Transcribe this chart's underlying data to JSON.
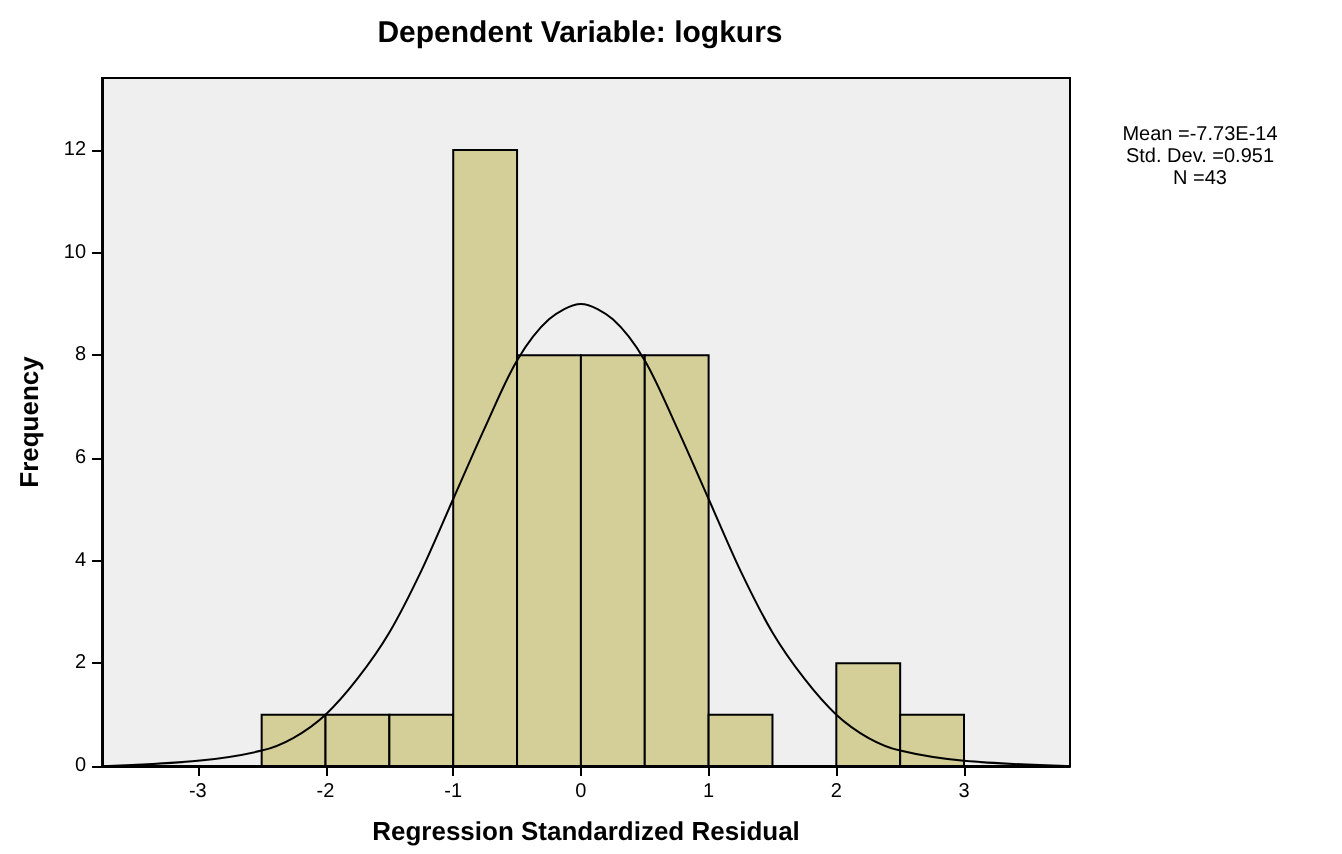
{
  "chart_data": {
    "type": "histogram",
    "title": "Dependent Variable: logkurs",
    "xlabel": "Regression Standardized Residual",
    "ylabel": "Frequency",
    "annotations": [
      "Mean =-7.73E-14",
      "Std. Dev. =0.951",
      "N =43"
    ],
    "series": [
      {
        "type": "histogram",
        "color": "#d4cf99",
        "bins": [
          -2.5,
          -2,
          -1.5,
          -1,
          -0.5,
          0,
          0.5,
          1,
          1.5,
          2,
          2.5,
          3
        ],
        "values": [
          1,
          1,
          1,
          12,
          8,
          8,
          8,
          1,
          0,
          2,
          1
        ]
      },
      {
        "type": "line",
        "color": "#000000",
        "x": [
          -3.7,
          -3,
          -2.5,
          -2.25,
          -2,
          -1.75,
          -1.5,
          -1.25,
          -1,
          -0.75,
          -0.5,
          -0.25,
          0,
          0.25,
          0.5,
          0.75,
          1,
          1.25,
          1.5,
          1.75,
          2,
          2.25,
          2.5,
          3,
          3.8
        ],
        "values": [
          0,
          0.1,
          0.3,
          0.55,
          1,
          1.7,
          2.6,
          3.8,
          5.2,
          6.6,
          7.9,
          8.7,
          9,
          8.7,
          7.9,
          6.6,
          5.2,
          3.8,
          2.6,
          1.7,
          1,
          0.55,
          0.3,
          0.1,
          0
        ]
      }
    ],
    "marker": "none",
    "grid": false,
    "xlim": [
      -3.75,
      3.83
    ],
    "xticks": [
      -3,
      -2,
      -1,
      0,
      1,
      2,
      3
    ],
    "ylim": [
      0,
      13.4
    ],
    "yticks": [
      0,
      2,
      4,
      6,
      8,
      10,
      12
    ]
  }
}
